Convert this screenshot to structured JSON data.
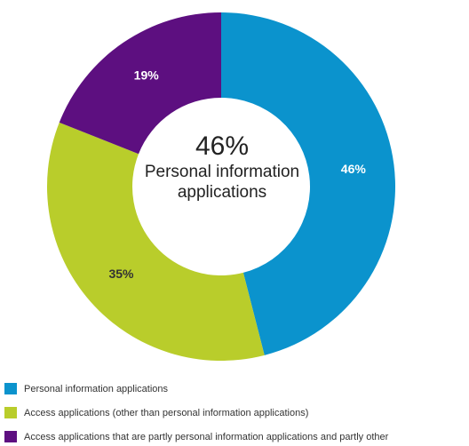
{
  "chart_data": {
    "type": "donut",
    "categories": [
      "Personal information applications",
      "Access applications (other than personal information applications)",
      "Access applications that are partly personal information applications and partly other"
    ],
    "values": [
      46,
      35,
      19
    ],
    "value_labels": [
      "46%",
      "35%",
      "19%"
    ],
    "colors": [
      "#0b93cd",
      "#b9cd2b",
      "#5d0f80"
    ],
    "label_colors": [
      "#ffffff",
      "#333333",
      "#ffffff"
    ]
  }
}
